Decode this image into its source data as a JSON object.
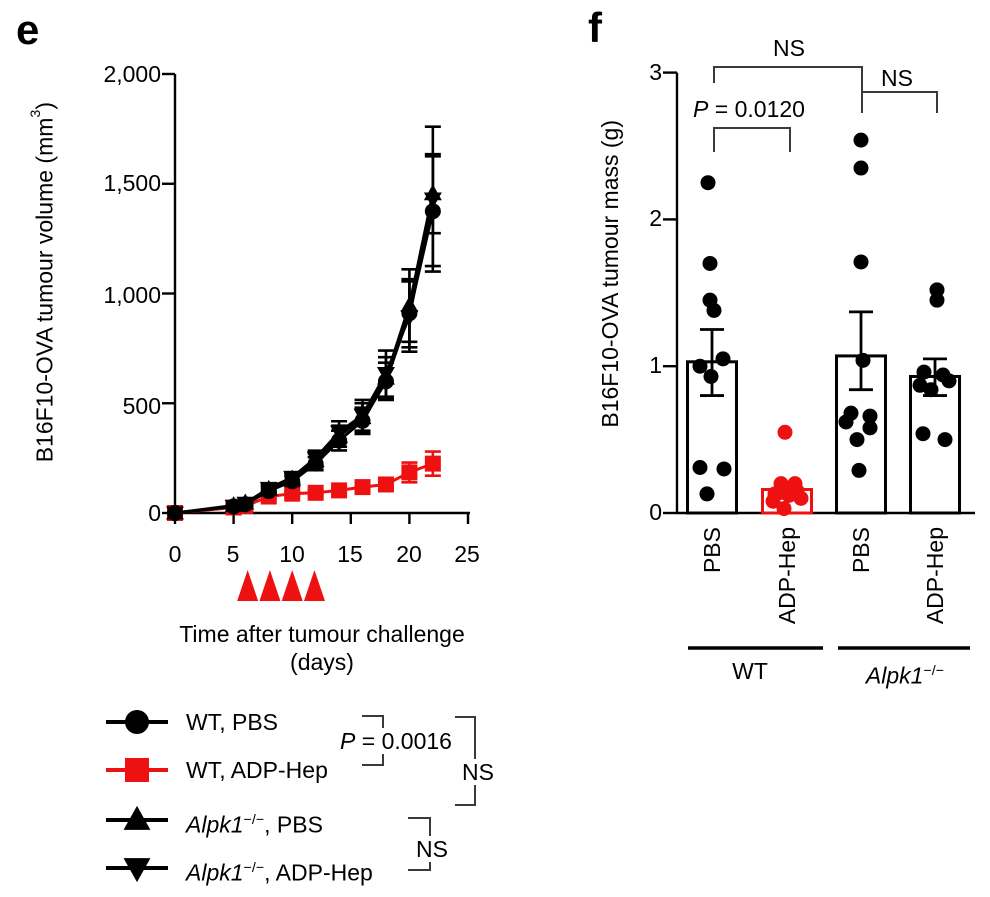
{
  "figure": {
    "panel_e_letter": "e",
    "panel_f_letter": "f"
  },
  "colors": {
    "black": "#000000",
    "red": "#ee1111",
    "bracket": "#3a3a3a"
  },
  "panel_e": {
    "y_title_pre": "B16F10-OVA tumour volume (mm",
    "y_title_sup": "3",
    "y_title_post": ")",
    "x_title_line1": "Time after tumour challenge",
    "x_title_line2": "(days)",
    "ytick_labels": [
      "2,000",
      "1,500",
      "1,000",
      "500",
      "0"
    ],
    "xtick_labels": [
      "0",
      "5",
      "10",
      "15",
      "20",
      "25"
    ],
    "legend": {
      "items": [
        {
          "label": "WT, PBS"
        },
        {
          "label": "WT, ADP-Hep"
        },
        {
          "gene": "Alpk1",
          "sup": "−/−",
          "rest": ", PBS"
        },
        {
          "gene": "Alpk1",
          "sup": "−/−",
          "rest": ", ADP-Hep"
        }
      ]
    },
    "stats": {
      "p_label": "P",
      "p_rest": " = 0.0016",
      "ns_outer": "NS",
      "ns_inner": "NS"
    }
  },
  "panel_f": {
    "y_title": "B16F10-OVA tumour mass (g)",
    "ytick_labels": [
      "3",
      "2",
      "1",
      "0"
    ],
    "col_labels": [
      "PBS",
      "ADP-Hep",
      "PBS",
      "ADP-Hep"
    ],
    "group_labels": [
      {
        "label": "WT"
      },
      {
        "gene": "Alpk1",
        "sup": "−/−"
      }
    ],
    "stats": {
      "p_label": "P",
      "p_rest": " = 0.0120",
      "ns_wide": "NS",
      "ns_right": "NS"
    }
  },
  "chart_data": [
    {
      "type": "line",
      "title": "",
      "xlabel": "Time after tumour challenge (days)",
      "ylabel": "B16F10-OVA tumour volume (mm3)",
      "xlim": [
        0,
        25
      ],
      "ylim": [
        0,
        2000
      ],
      "xticks": [
        0,
        5,
        10,
        15,
        20,
        25
      ],
      "yticks": [
        0,
        500,
        1000,
        1500,
        2000
      ],
      "grid": false,
      "legend_position": "below-left",
      "x": [
        0,
        5,
        6,
        8,
        10,
        12,
        14,
        16,
        18,
        20,
        22
      ],
      "series": [
        {
          "key": "wt-pbs",
          "name": "WT, PBS",
          "color": "#000000",
          "marker": "circle",
          "values": [
            0,
            30,
            40,
            100,
            145,
            225,
            330,
            420,
            600,
            910,
            1375
          ],
          "errors": [
            4,
            8,
            10,
            15,
            22,
            30,
            45,
            60,
            85,
            155,
            250
          ]
        },
        {
          "key": "wt-adp-hep",
          "name": "WT, ADP-Hep",
          "color": "#ee1111",
          "marker": "square",
          "values": [
            0,
            25,
            32,
            75,
            88,
            92,
            103,
            118,
            130,
            185,
            225
          ],
          "errors": [
            4,
            6,
            6,
            9,
            10,
            10,
            12,
            14,
            22,
            45,
            55
          ]
        },
        {
          "key": "alpk1-pbs",
          "name": "Alpk1−/−, PBS",
          "color": "#000000",
          "marker": "triangle-up",
          "values": [
            0,
            34,
            46,
            108,
            155,
            240,
            350,
            435,
            615,
            945,
            1455
          ],
          "errors": [
            4,
            8,
            10,
            16,
            24,
            32,
            48,
            65,
            95,
            165,
            180
          ]
        },
        {
          "key": "alpk1-adp-hep",
          "name": "Alpk1−/−, ADP-Hep",
          "color": "#000000",
          "marker": "triangle-down",
          "values": [
            0,
            30,
            44,
            112,
            162,
            250,
            368,
            445,
            635,
            895,
            1430
          ],
          "errors": [
            4,
            8,
            10,
            16,
            24,
            34,
            50,
            70,
            105,
            160,
            330
          ]
        }
      ],
      "treatment_arrow_days": [
        6.2,
        8.1,
        10.0,
        11.9
      ],
      "annotations": [
        {
          "text": "P = 0.0016",
          "compares": [
            "WT, PBS",
            "WT, ADP-Hep"
          ]
        },
        {
          "text": "NS",
          "compares": [
            "WT, PBS",
            "Alpk1−/− groups"
          ]
        },
        {
          "text": "NS",
          "compares": [
            "Alpk1−/−, PBS",
            "Alpk1−/−, ADP-Hep"
          ]
        }
      ]
    },
    {
      "type": "bar",
      "title": "",
      "ylabel": "B16F10-OVA tumour mass (g)",
      "ylim": [
        0,
        3
      ],
      "yticks": [
        0,
        1,
        2,
        3
      ],
      "grid": false,
      "categories": [
        "PBS",
        "ADP-Hep",
        "PBS",
        "ADP-Hep"
      ],
      "group_of_category": [
        "WT",
        "WT",
        "Alpk1−/−",
        "Alpk1−/−"
      ],
      "bars": [
        {
          "key": "wt-pbs",
          "mean": 1.03,
          "sem_low": 0.8,
          "sem_high": 1.25,
          "color": "#000000",
          "points": [
            2.25,
            1.7,
            1.45,
            1.38,
            1.05,
            1.0,
            0.93,
            0.31,
            0.3,
            0.13
          ],
          "jitter": [
            -4,
            -2,
            -2,
            2,
            11,
            -12,
            -1,
            -12,
            12,
            -5
          ]
        },
        {
          "key": "wt-adp-hep",
          "mean": 0.16,
          "sem_low": 0.1,
          "sem_high": 0.21,
          "color": "#ee1111",
          "points": [
            0.55,
            0.2,
            0.2,
            0.17,
            0.15,
            0.13,
            0.12,
            0.1,
            0.08,
            0.03
          ],
          "jitter": [
            -2,
            -6,
            8,
            -1,
            10,
            -12,
            2,
            14,
            -14,
            -3
          ]
        },
        {
          "key": "alpk1-pbs",
          "mean": 1.07,
          "sem_low": 0.84,
          "sem_high": 1.37,
          "color": "#000000",
          "points": [
            2.54,
            2.35,
            1.71,
            1.04,
            0.68,
            0.66,
            0.62,
            0.58,
            0.5,
            0.29
          ],
          "jitter": [
            0,
            0,
            0,
            2,
            -10,
            9,
            -15,
            9,
            -4,
            -2
          ]
        },
        {
          "key": "alpk1-adp-hep",
          "mean": 0.93,
          "sem_low": 0.8,
          "sem_high": 1.05,
          "color": "#000000",
          "points": [
            1.52,
            1.45,
            0.96,
            0.94,
            0.9,
            0.87,
            0.84,
            0.54,
            0.5
          ],
          "jitter": [
            2,
            2,
            -11,
            8,
            14,
            -15,
            -4,
            -12,
            10
          ]
        }
      ],
      "annotations": [
        {
          "text": "P = 0.0120",
          "compares": [
            "WT PBS",
            "WT ADP-Hep"
          ]
        },
        {
          "text": "NS",
          "compares": [
            "WT PBS",
            "Alpk1−/− PBS"
          ]
        },
        {
          "text": "NS",
          "compares": [
            "Alpk1−/− PBS",
            "Alpk1−/− ADP-Hep"
          ]
        }
      ]
    }
  ]
}
